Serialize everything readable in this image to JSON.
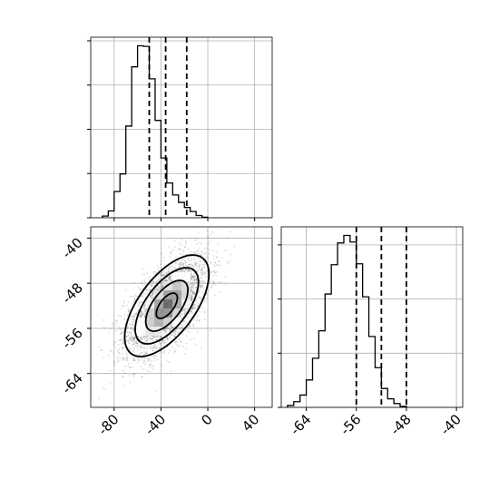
{
  "chart_data": {
    "type": "corner",
    "title": "",
    "grid": true,
    "parameters": [
      {
        "xlim": [
          -100,
          55
        ],
        "xticks": [
          "-80",
          "-40",
          "0",
          "40"
        ],
        "histogram": {
          "bin_start": -90,
          "bin_width": 5,
          "counts": [
            0.3,
            1.2,
            4.6,
            7.7,
            16.1,
            26.5,
            30.2,
            30.1,
            24.4,
            17.1,
            10.5,
            6.1,
            4.0,
            2.7,
            1.8,
            1.1,
            0.4,
            0.1
          ]
        },
        "quantiles": {
          "q16": -50,
          "q50": -36,
          "q84": -18
        }
      },
      {
        "xlim": [
          -68,
          -39
        ],
        "xticks": [
          "-64",
          "-56",
          "-48",
          "-40"
        ],
        "histogram": {
          "bin_start": -67,
          "bin_width": 1,
          "counts": [
            0.2,
            0.6,
            1.3,
            2.9,
            5.2,
            8.1,
            12.0,
            15.1,
            17.4,
            18.2,
            17.5,
            15.2,
            11.7,
            7.5,
            4.2,
            2.0,
            0.9,
            0.4,
            0.1
          ]
        },
        "quantiles": {
          "q16": -56,
          "q50": -52,
          "q84": -48
        }
      }
    ],
    "joint": {
      "xlim": [
        -100,
        55
      ],
      "ylim": [
        -70,
        -38
      ],
      "xticks": [
        "-80",
        "-40",
        "0",
        "40"
      ],
      "yticks": [
        "-40",
        "-48",
        "-56",
        "-64"
      ],
      "mean": [
        -35,
        -52
      ],
      "std": [
        18,
        4.5
      ],
      "correlation": 0.62,
      "contour_levels_sigma": [
        0.5,
        1.0,
        1.5,
        2.0
      ]
    }
  }
}
